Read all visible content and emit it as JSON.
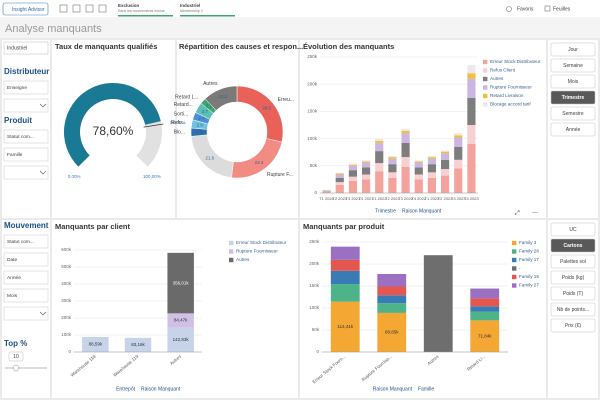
{
  "topbar": {
    "insight": "Insight Advisor",
    "tabs": [
      {
        "title": "Exclusion",
        "subtitle": "Sans les mouvements exclus"
      },
      {
        "title": "Industriel",
        "subtitle": "Membership 2"
      }
    ],
    "favoris": "Favoris",
    "feuilles": "Feuilles"
  },
  "sheet_title": "Analyse manquants",
  "filters": {
    "chip": "Industriel",
    "groups": [
      {
        "title": "Distributeur",
        "fields": [
          "Enseigne"
        ],
        "dropdowns": 1
      },
      {
        "title": "Produit",
        "fields": [
          "Statut com...",
          "Famille"
        ],
        "dropdowns": 1
      },
      {
        "title": "Mouvement",
        "fields": [
          "Statut com...",
          "Date",
          "Année",
          "Mois"
        ],
        "dropdowns": 1
      }
    ],
    "top": {
      "title": "Top %",
      "value": 10
    }
  },
  "periods": {
    "options": [
      "Jour",
      "Semaine",
      "Mois",
      "Trimestre",
      "Semestre",
      "Année"
    ],
    "selected": 3
  },
  "units": {
    "options": [
      "UC",
      "Cartons",
      "Palettes sol",
      "Poids (kg)",
      "Poids (T)",
      "Nb de points...",
      "Prix (€)"
    ],
    "selected": 1
  },
  "gauge": {
    "type": "gauge",
    "title": "Taux de manquants qualifiés",
    "value": 78.6,
    "value_label": "78,60%",
    "scale": [
      {
        "value": 0,
        "label": "0,00%"
      },
      {
        "value": 100,
        "label": "100,00%"
      }
    ],
    "target": {
      "value": 80,
      "label": "80,00%"
    },
    "color": "#1a7a96",
    "track_color": "#e1e1e1"
  },
  "donut": {
    "type": "pie",
    "title": "Répartition des causes et respon...",
    "categories": [
      "Erreu...",
      "Rupture F...",
      null,
      "Blo...",
      "Refu...",
      "Sorti...",
      "Retard...",
      "Retard L...",
      "Autres"
    ],
    "values": [
      28.5,
      23.4,
      21.6,
      2.9,
      2.9,
      2.7,
      3.7,
      2.1,
      12.2
    ],
    "colors": [
      "#e8625a",
      "#f28b82",
      "#dcdcdc",
      "#2f6fb0",
      "#6fc3df",
      "#4a90d9",
      "#5bbfb5",
      "#3aa76d",
      "#7a7a7a"
    ]
  },
  "evolution": {
    "type": "bar",
    "stacked": true,
    "title": "Évolution des manquants",
    "categories": [
      "T1 2021",
      "T2 2021",
      "T3 2021",
      "T4 2021",
      "T1 2022",
      "T2 2022",
      "T3 2022",
      "T4 2022",
      "T1 2023",
      "T2 2023",
      "T3 2023",
      "T4 2023"
    ],
    "series": [
      {
        "name": "Erreur Stock Distributeur",
        "color": "#f4a29c",
        "values": [
          2000,
          15000,
          22000,
          25000,
          40000,
          28000,
          48000,
          25000,
          28000,
          32000,
          45000,
          90000
        ]
      },
      {
        "name": "Refus Client",
        "color": "#f8d0d2",
        "values": [
          1000,
          5000,
          8000,
          9000,
          15000,
          10000,
          18000,
          9000,
          10000,
          12000,
          16000,
          35000
        ]
      },
      {
        "name": "Autres",
        "color": "#7d7d7d",
        "values": [
          1000,
          8000,
          12000,
          13000,
          22000,
          15000,
          26000,
          13000,
          15000,
          17000,
          24000,
          50000
        ]
      },
      {
        "name": "Rupture Fournisseur",
        "color": "#cbb5e2",
        "values": [
          1000,
          6000,
          8000,
          9000,
          15000,
          10000,
          18000,
          9000,
          10000,
          12000,
          17000,
          35000
        ]
      },
      {
        "name": "Retard Livraison",
        "color": "#f3bf3a",
        "values": [
          400,
          2000,
          2000,
          2000,
          4000,
          3000,
          4000,
          2000,
          3000,
          3000,
          4000,
          10000
        ]
      },
      {
        "name": "Blocage accord tarif",
        "color": "#e9e9e9",
        "values": [
          300,
          1000,
          2000,
          2000,
          4000,
          2000,
          4000,
          2000,
          2000,
          2000,
          4000,
          15000
        ]
      }
    ],
    "ylim": [
      0,
      250000
    ],
    "yticks": [
      0,
      {
        "value": 50000,
        "label": "50k"
      },
      {
        "value": 100000,
        "label": "100k"
      },
      {
        "value": 150000,
        "label": "150k"
      },
      {
        "value": 200000,
        "label": "200k"
      },
      {
        "value": 250000,
        "label": "250k"
      }
    ],
    "xlabel": "Trimestre",
    "series_label": "Raison Manquant",
    "grid": true
  },
  "clients": {
    "type": "bar",
    "stacked": true,
    "title": "Manquants par client",
    "categories": [
      "Warehouse 118",
      "Warehouse 119",
      "Autres"
    ],
    "series": [
      {
        "name": "Erreur Stock Distributeur",
        "color": "#c6d3e8",
        "values": [
          88590,
          83160,
          142830
        ],
        "value_labels": [
          "88,59k",
          "83,16k",
          "142,83k"
        ]
      },
      {
        "name": "Rupture Fournisseur",
        "color": "#cfc1e6",
        "values": [
          0,
          0,
          84470
        ],
        "value_labels": [
          null,
          null,
          "84,47k"
        ]
      },
      {
        "name": "Autres",
        "color": "#6a6a6a",
        "values": [
          0,
          0,
          356010
        ],
        "value_labels": [
          null,
          null,
          "356,01k"
        ]
      }
    ],
    "ylim": [
      0,
      600000
    ],
    "yticks": [
      0,
      {
        "value": 100000,
        "label": "100k"
      },
      {
        "value": 200000,
        "label": "200k"
      },
      {
        "value": 300000,
        "label": "300k"
      },
      {
        "value": 400000,
        "label": "400k"
      },
      {
        "value": 500000,
        "label": "500k"
      },
      {
        "value": 600000,
        "label": "600k"
      }
    ],
    "xlabel": "Entrepôt",
    "series_label": "Raison Manquant",
    "grid": true
  },
  "produits": {
    "type": "bar",
    "stacked": true,
    "title": "Manquants par produit",
    "categories": [
      "Erreur Stock Fourn...",
      "Rupture Fourniss...",
      "Autres",
      "Retard Li..."
    ],
    "series": [
      {
        "name": "Family 3",
        "color": "#f5a733",
        "values": [
          114410,
          88850,
          0,
          71840
        ],
        "value_labels": [
          "114,41k",
          "88,85k",
          null,
          "71,84k"
        ]
      },
      {
        "name": "Family 28",
        "color": "#4db389",
        "values": [
          40000,
          22000,
          0,
          20000
        ]
      },
      {
        "name": "Family 17",
        "color": "#3a7bb5",
        "values": [
          30000,
          18000,
          0,
          12000
        ]
      },
      {
        "name": "-",
        "color": "#6e6e6e",
        "values": [
          0,
          0,
          220000,
          0
        ]
      },
      {
        "name": "Family 16",
        "color": "#e4574f",
        "values": [
          25000,
          20000,
          0,
          18000
        ]
      },
      {
        "name": "Family 27",
        "color": "#9b6fc2",
        "values": [
          30000,
          28460,
          0,
          22390
        ]
      }
    ],
    "ylim": [
      0,
      250000
    ],
    "yticks": [
      0,
      {
        "value": 50000,
        "label": "50k"
      },
      {
        "value": 100000,
        "label": "100k"
      },
      {
        "value": 150000,
        "label": "150k"
      },
      {
        "value": 200000,
        "label": "200k"
      },
      {
        "value": 250000,
        "label": "250k"
      }
    ],
    "xlabel": "Raison Manquant",
    "series_label": "Famille",
    "grid": true
  }
}
